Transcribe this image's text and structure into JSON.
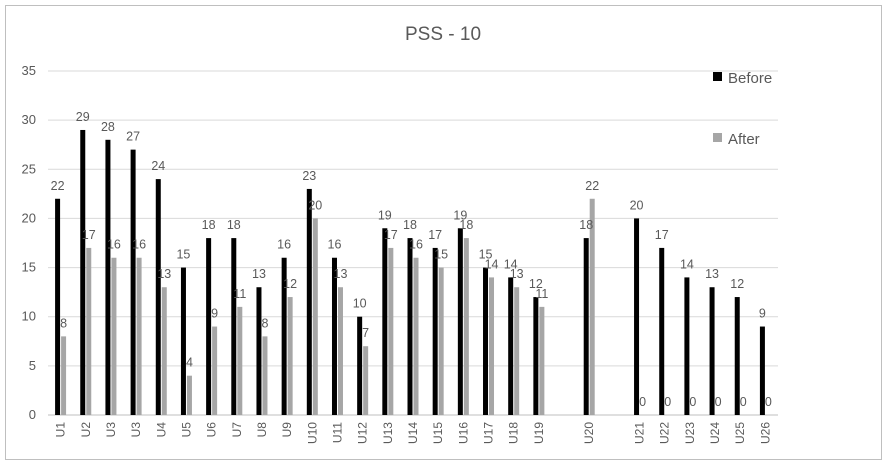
{
  "chart_data": {
    "type": "bar",
    "title": "PSS - 10",
    "xlabel": "",
    "ylabel": "",
    "ylim": [
      0,
      35
    ],
    "yticks": [
      0,
      5,
      10,
      15,
      20,
      25,
      30,
      35
    ],
    "grid": true,
    "legend_position": "right",
    "categories": [
      "U1",
      "U2",
      "U3",
      "U3",
      "U4",
      "U5",
      "U6",
      "U7",
      "U8",
      "U9",
      "U10",
      "U11",
      "U12",
      "U13",
      "U14",
      "U15",
      "U16",
      "U17",
      "U18",
      "U19",
      "",
      "U20",
      "",
      "U21",
      "U22",
      "U23",
      "U24",
      "U25",
      "U26"
    ],
    "series": [
      {
        "name": "Before",
        "color": "#000000",
        "values": [
          22,
          29,
          28,
          27,
          24,
          15,
          18,
          18,
          13,
          16,
          23,
          16,
          10,
          19,
          18,
          17,
          19,
          15,
          14,
          12,
          null,
          18,
          null,
          20,
          17,
          14,
          13,
          12,
          9
        ]
      },
      {
        "name": "After",
        "color": "#a6a6a6",
        "values": [
          8,
          17,
          16,
          16,
          13,
          4,
          9,
          11,
          8,
          12,
          20,
          13,
          7,
          17,
          16,
          15,
          18,
          14,
          13,
          11,
          null,
          22,
          null,
          0,
          0,
          0,
          0,
          0,
          0
        ]
      }
    ]
  }
}
